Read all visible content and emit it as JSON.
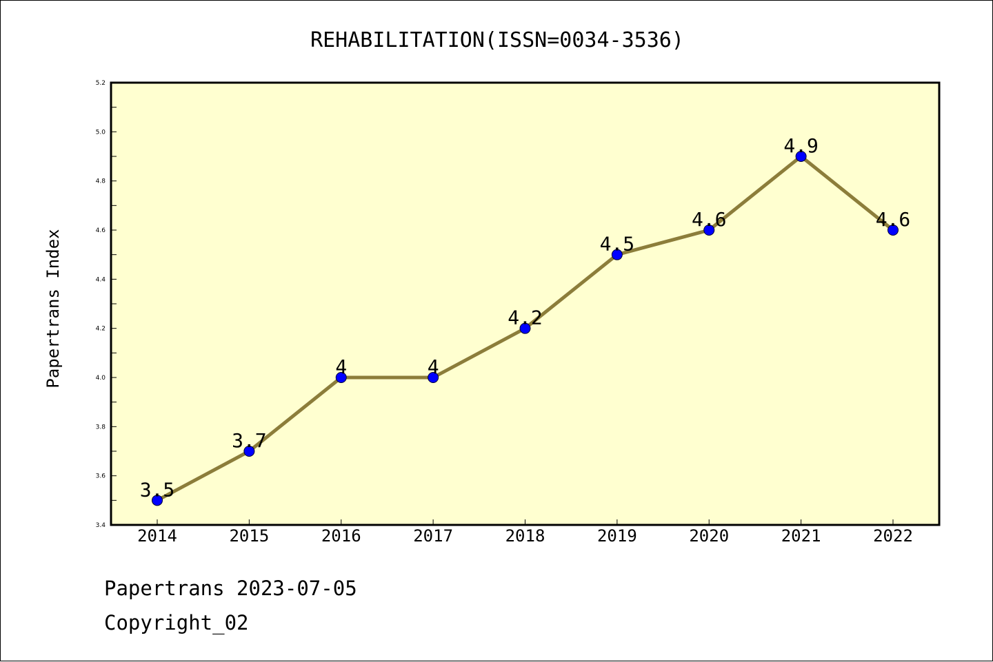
{
  "chart_data": {
    "type": "line",
    "title": "REHABILITATION(ISSN=0034-3536)",
    "ylabel": "Papertrans Index",
    "xlabel": "",
    "categories": [
      "2014",
      "2015",
      "2016",
      "2017",
      "2018",
      "2019",
      "2020",
      "2021",
      "2022"
    ],
    "values": [
      3.5,
      3.7,
      4,
      4,
      4.2,
      4.5,
      4.6,
      4.9,
      4.6
    ],
    "data_labels": [
      "3.5",
      "3.7",
      "4",
      "4",
      "4.2",
      "4.5",
      "4.6",
      "4.9",
      "4.6"
    ],
    "ylim": [
      3.4,
      5.2
    ],
    "y_ticks": [
      "3.4",
      "3.6",
      "3.8",
      "4.0",
      "4.2",
      "4.4",
      "4.6",
      "4.8",
      "5.0",
      "5.2"
    ],
    "grid": false,
    "colors": {
      "plot_background": "#ffffd0",
      "line": "#8c7d3a",
      "marker": "#0000ff"
    }
  },
  "footer": {
    "source": "Papertrans 2023-07-05",
    "copyright": "Copyright_02"
  }
}
